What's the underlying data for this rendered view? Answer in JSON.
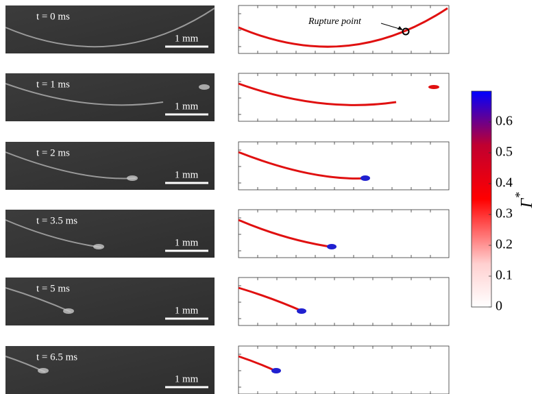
{
  "panels": [
    {
      "time": "t = 0 ms",
      "scale": "1 mm"
    },
    {
      "time": "t = 1 ms",
      "scale": "1 mm"
    },
    {
      "time": "t = 2 ms",
      "scale": "1 mm"
    },
    {
      "time": "t = 3.5 ms",
      "scale": "1 mm"
    },
    {
      "time": "t = 5 ms",
      "scale": "1 mm"
    },
    {
      "time": "t = 6.5 ms",
      "scale": "1 mm"
    }
  ],
  "annotation": "Rupture point",
  "colorbar": {
    "label": "Γ",
    "label_sup": "*",
    "lim": [
      0,
      0.7
    ],
    "ticks": [
      0,
      0.1,
      0.2,
      0.3,
      0.4,
      0.5,
      0.6
    ]
  }
}
